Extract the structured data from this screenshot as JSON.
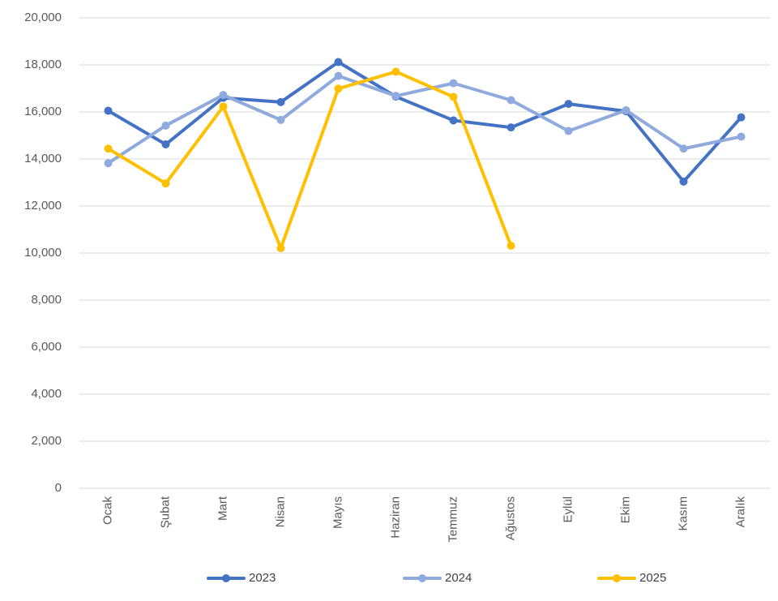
{
  "chart_data": {
    "type": "line",
    "title": "",
    "xlabel": "",
    "ylabel": "",
    "ylim": [
      0,
      20000
    ],
    "yticks": [
      "0",
      "2,000",
      "4,000",
      "6,000",
      "8,000",
      "10,000",
      "12,000",
      "14,000",
      "16,000",
      "18,000",
      "20,000"
    ],
    "grid": true,
    "legend_position": "bottom",
    "categories": [
      "Ocak",
      "Şubat",
      "Mart",
      "Nisan",
      "Mayıs",
      "Haziran",
      "Temmuz",
      "Ağustos",
      "Eylül",
      "Ekim",
      "Kasım",
      "Aralık"
    ],
    "series": [
      {
        "name": "2023",
        "color": "#4472c4",
        "values": [
          16050,
          14620,
          16600,
          16420,
          18120,
          16650,
          15640,
          15340,
          16340,
          16030,
          13040,
          15770
        ]
      },
      {
        "name": "2024",
        "color": "#8faadc",
        "values": [
          13820,
          15420,
          16720,
          15660,
          17530,
          16680,
          17220,
          16500,
          15190,
          16070,
          14440,
          14950
        ]
      },
      {
        "name": "2025",
        "color": "#ffc000",
        "values": [
          14440,
          12960,
          16230,
          10210,
          16990,
          17710,
          16640,
          10310,
          null,
          null,
          null,
          null
        ]
      }
    ]
  }
}
